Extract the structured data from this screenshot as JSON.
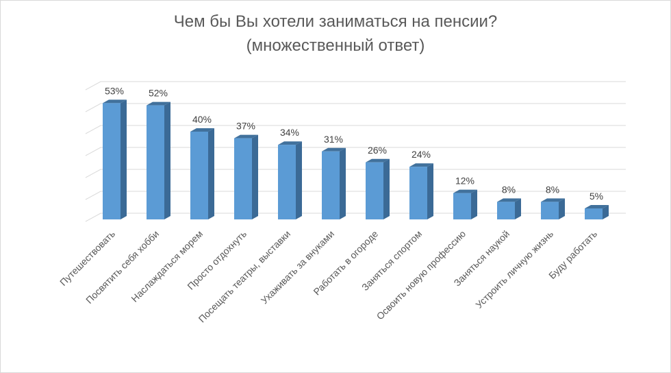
{
  "chart_data": {
    "type": "bar",
    "title_line1": "Чем бы Вы хотели заниматься на пенсии?",
    "title_line2": "(множественный ответ)",
    "categories": [
      "Путешествовать",
      "Посвятить себя хобби",
      "Наслаждаться морем",
      "Просто отдохнуть",
      "Посещать театры, выставки",
      "Ухаживать за внуками",
      "Работать в огороде",
      "Заняться спортом",
      "Освоить новую профессию",
      "Заняться наукой",
      "Устроить личную жизнь",
      "Буду работать"
    ],
    "values": [
      53,
      52,
      40,
      37,
      34,
      31,
      26,
      24,
      12,
      8,
      8,
      5
    ],
    "data_labels": [
      "53%",
      "52%",
      "40%",
      "37%",
      "34%",
      "31%",
      "26%",
      "24%",
      "12%",
      "8%",
      "8%",
      "5%"
    ],
    "ylim": [
      0,
      60
    ],
    "grid": true,
    "style": "3d-column",
    "colors": {
      "front": "#5b9bd5",
      "side": "#3b6a96",
      "top": "#41719c",
      "grid": "#d9d9d9"
    }
  }
}
